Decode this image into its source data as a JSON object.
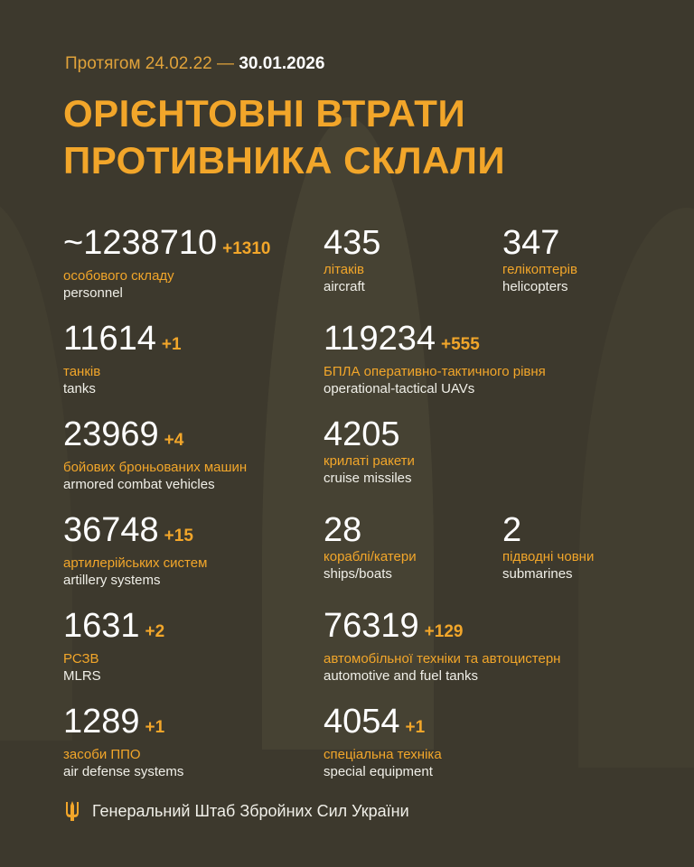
{
  "period": {
    "prefix": "Протягом 24.02.22 —",
    "end_date": "30.01.2026"
  },
  "title": {
    "line1": "ОРІЄНТОВНІ ВТРАТИ",
    "line2": "ПРОТИВНИКА СКЛАЛИ"
  },
  "colors": {
    "background": "#3d392d",
    "accent": "#f2a62a",
    "text": "#ffffff"
  },
  "stats": [
    {
      "value": "~1238710",
      "delta": "+1310",
      "ua": "особового складу",
      "en": "personnel"
    },
    {
      "value": "435",
      "delta": "",
      "ua": "літаків",
      "en": "aircraft"
    },
    {
      "value": "347",
      "delta": "",
      "ua": "гелікоптерів",
      "en": "helicopters"
    },
    {
      "value": "11614",
      "delta": "+1",
      "ua": "танків",
      "en": "tanks"
    },
    {
      "value": "119234",
      "delta": "+555",
      "ua": "БПЛА оперативно-тактичного рівня",
      "en": "operational-tactical UAVs"
    },
    {
      "value": "23969",
      "delta": "+4",
      "ua": "бойових броньованих машин",
      "en": "armored combat vehicles"
    },
    {
      "value": "4205",
      "delta": "",
      "ua": "крилаті ракети",
      "en": "cruise missiles"
    },
    {
      "value": "36748",
      "delta": "+15",
      "ua": "артилерійських систем",
      "en": "artillery systems"
    },
    {
      "value": "28",
      "delta": "",
      "ua": "кораблі/катери",
      "en": "ships/boats"
    },
    {
      "value": "2",
      "delta": "",
      "ua": "підводні човни",
      "en": "submarines"
    },
    {
      "value": "1631",
      "delta": "+2",
      "ua": "РСЗВ",
      "en": "MLRS"
    },
    {
      "value": "76319",
      "delta": "+129",
      "ua": "автомобільної техніки та автоцистерн",
      "en": "automotive and fuel tanks"
    },
    {
      "value": "1289",
      "delta": "+1",
      "ua": "засоби ППО",
      "en": "air defense systems"
    },
    {
      "value": "4054",
      "delta": "+1",
      "ua": "спеціальна техніка",
      "en": "special equipment"
    }
  ],
  "footer": {
    "icon": "trident-icon",
    "text": "Генеральний Штаб Збройних Сил України"
  }
}
